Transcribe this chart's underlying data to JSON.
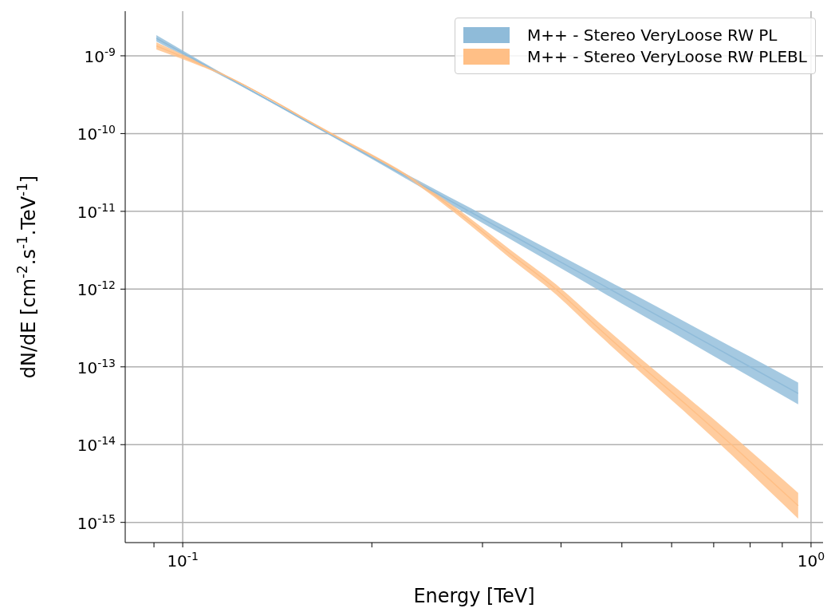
{
  "chart_data": {
    "type": "line",
    "xlabel": "Energy [TeV]",
    "ylabel": "dN/dE [cm$^{-2}$.s$^{-1}$.TeV$^{-1}$]",
    "log": "xy",
    "grid": true,
    "legend": "top right",
    "xlim": [
      0.081,
      1.045
    ],
    "ylim": [
      5.5e-16,
      3.75e-09
    ],
    "xticks": [
      {
        "value": 0.09,
        "label": null
      },
      {
        "value": 0.1,
        "label": "10$^{-1}$"
      },
      {
        "value": 0.2,
        "label": null
      },
      {
        "value": 0.3,
        "label": null
      },
      {
        "value": 0.4,
        "label": null
      },
      {
        "value": 0.5,
        "label": null
      },
      {
        "value": 0.6,
        "label": null
      },
      {
        "value": 0.7,
        "label": null
      },
      {
        "value": 0.8,
        "label": null
      },
      {
        "value": 0.9,
        "label": null
      },
      {
        "value": 1,
        "label": "10$^{0}$"
      }
    ],
    "yticks": [
      {
        "value": 1e-15,
        "label": "10$^{-15}$"
      },
      {
        "value": 1e-14,
        "label": "10$^{-14}$"
      },
      {
        "value": 1e-13,
        "label": "10$^{-13}$"
      },
      {
        "value": 1e-12,
        "label": "10$^{-12}$"
      },
      {
        "value": 1e-11,
        "label": "10$^{-11}$"
      },
      {
        "value": 1e-10,
        "label": "10$^{-10}$"
      },
      {
        "value": 1e-09,
        "label": "10$^{-9}$"
      }
    ],
    "series": [
      {
        "name": "M++ - Stereo VeryLoose RW PL",
        "color": "#8fbbd9",
        "x": [
          0.0908,
          0.12,
          0.15,
          0.2,
          0.25,
          0.3,
          0.4,
          0.5,
          0.6,
          0.7,
          0.8,
          0.954
        ],
        "values": [
          1.68e-09,
          4.84e-10,
          1.79e-10,
          4.93e-11,
          1.82e-11,
          8.05e-12,
          2.22e-12,
          8.2e-13,
          3.64e-13,
          1.82e-13,
          1e-13,
          4.54e-14
        ],
        "lower": [
          1.53e-09,
          4.68e-10,
          1.74e-10,
          4.71e-11,
          1.66e-11,
          7.09e-12,
          1.85e-12,
          6.51e-13,
          2.83e-13,
          1.38e-13,
          7.45e-14,
          3.29e-14
        ],
        "upper": [
          1.85e-09,
          5.01e-10,
          1.84e-10,
          5.16e-11,
          1.99e-11,
          9.14e-12,
          2.67e-12,
          1.03e-12,
          4.69e-13,
          2.4e-13,
          1.35e-13,
          6.27e-14
        ]
      },
      {
        "name": "M++ - Stereo VeryLoose RW PLEBL",
        "color": "#ffbf86",
        "x": [
          0.0908,
          0.12,
          0.172,
          0.227,
          0.27,
          0.33,
          0.393,
          0.46,
          0.535,
          0.64,
          0.746,
          0.85,
          0.954
        ],
        "values": [
          1.34e-09,
          5.01e-10,
          1e-10,
          2.88e-11,
          1.07e-11,
          2.95e-12,
          9.89e-13,
          3.09e-13,
          1.05e-13,
          3.02e-14,
          1.01e-14,
          3.85e-15,
          1.64e-15
        ],
        "lower": [
          1.21e-09,
          4.9e-10,
          9.66e-11,
          2.75e-11,
          9.77e-12,
          2.6e-12,
          8.51e-13,
          2.57e-13,
          8.51e-14,
          2.34e-14,
          7.49e-15,
          2.72e-15,
          1.12e-15
        ],
        "upper": [
          1.49e-09,
          5.13e-10,
          1.04e-10,
          3.02e-11,
          1.17e-11,
          3.35e-12,
          1.15e-12,
          3.72e-13,
          1.29e-13,
          3.89e-14,
          1.37e-14,
          5.43e-15,
          2.4e-15
        ]
      }
    ]
  }
}
